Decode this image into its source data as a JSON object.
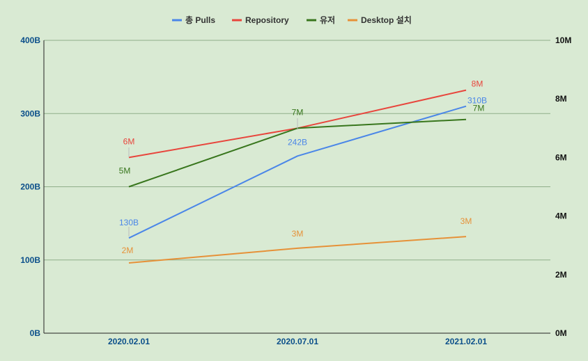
{
  "chart_data": {
    "type": "line",
    "categories": [
      "2020.02.01",
      "2020.07.01",
      "2021.02.01"
    ],
    "y_left": {
      "ylim": [
        0,
        400
      ],
      "ticks": [
        0,
        100,
        200,
        300,
        400
      ],
      "tick_labels": [
        "0B",
        "100B",
        "200B",
        "300B",
        "400B"
      ]
    },
    "y_right": {
      "ylim": [
        0,
        10
      ],
      "ticks": [
        0,
        2,
        4,
        6,
        8,
        10
      ],
      "tick_labels": [
        "0M",
        "2M",
        "4M",
        "6M",
        "8M",
        "10M"
      ]
    },
    "grid": true,
    "legend_position": "top",
    "series": [
      {
        "name": "총 Pulls",
        "axis": "left",
        "color": "#4a86e8",
        "values": [
          130,
          242,
          310
        ],
        "labels": [
          "130B",
          "242B",
          "310B"
        ]
      },
      {
        "name": "Repository",
        "axis": "right",
        "color": "#e8453c",
        "values": [
          6.0,
          7.0,
          8.3
        ],
        "labels": [
          "6M",
          "7M",
          "8M"
        ]
      },
      {
        "name": "유저",
        "axis": "right",
        "color": "#38761d",
        "values": [
          5.0,
          7.0,
          7.3
        ],
        "labels": [
          "5M",
          "7M",
          "7M"
        ]
      },
      {
        "name": "Desktop 설치",
        "axis": "right",
        "color": "#e69138",
        "values": [
          2.4,
          2.9,
          3.3
        ],
        "labels": [
          "2M",
          "3M",
          "3M"
        ]
      }
    ]
  }
}
